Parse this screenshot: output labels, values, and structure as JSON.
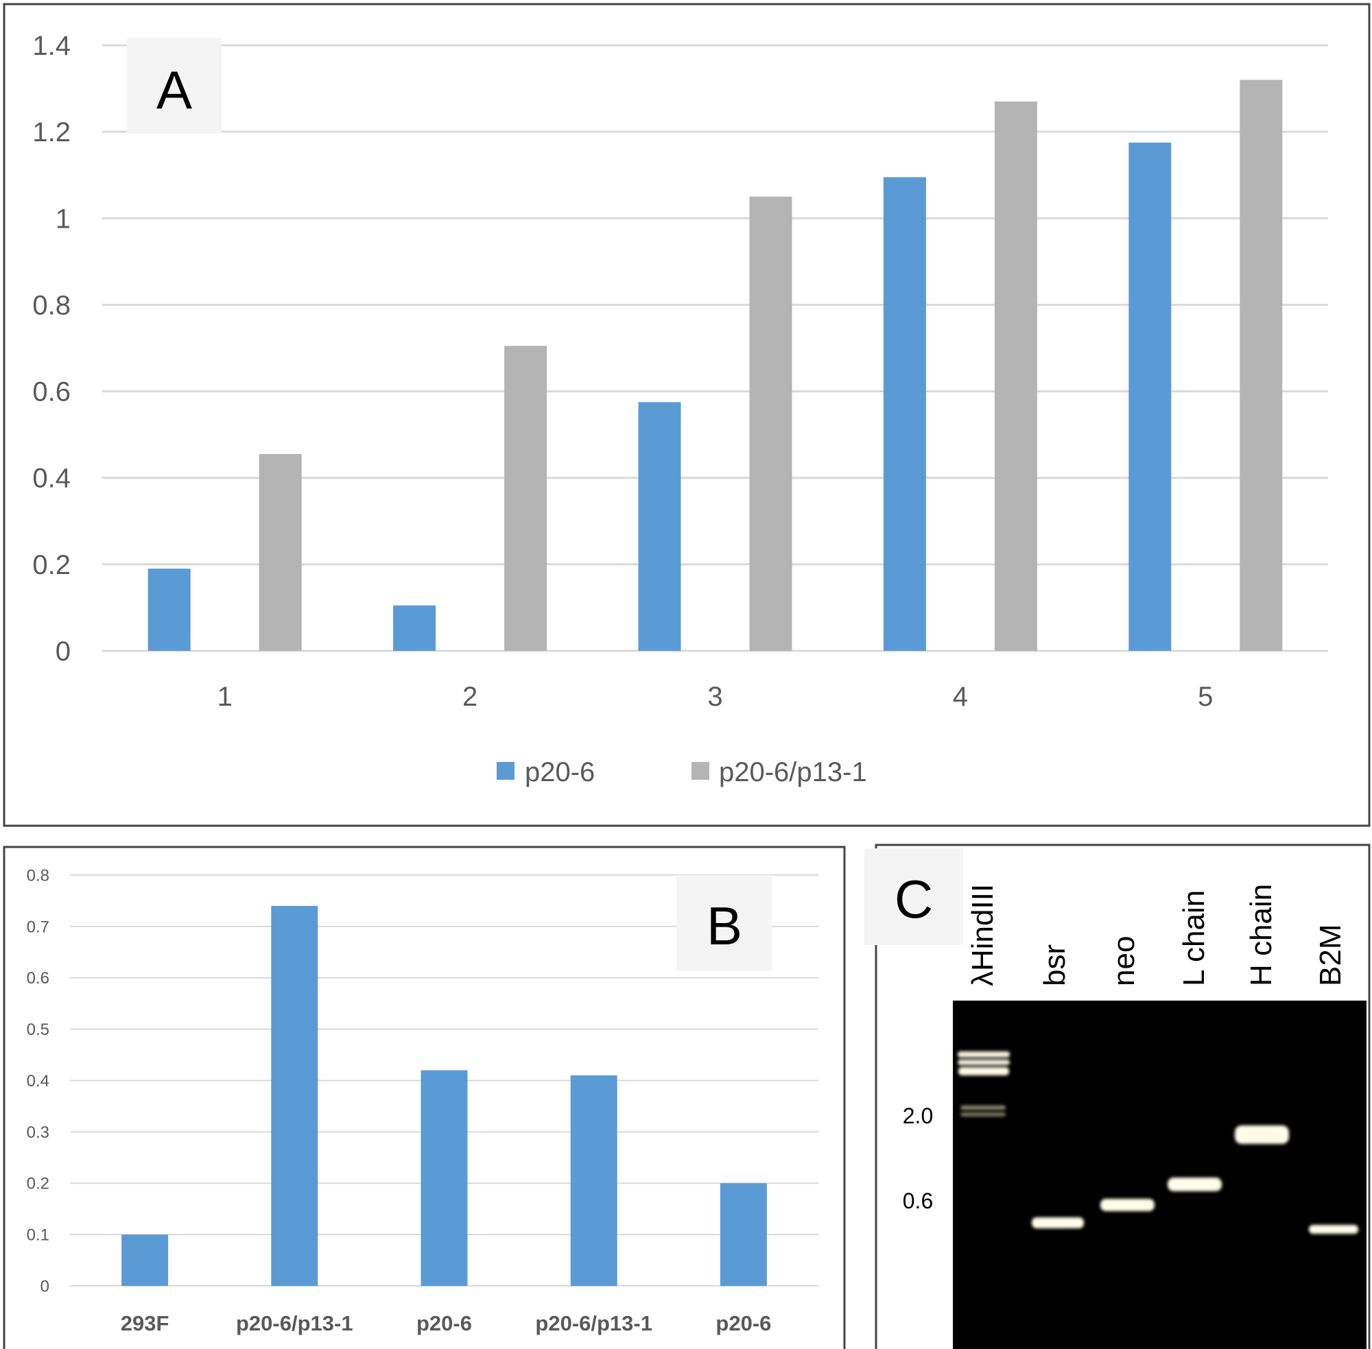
{
  "chart_data": [
    {
      "panel": "A",
      "type": "bar",
      "categories": [
        "1",
        "2",
        "3",
        "4",
        "5"
      ],
      "series": [
        {
          "name": "p20-6",
          "color": "#5b9bd5",
          "values": [
            0.19,
            0.105,
            0.575,
            1.095,
            1.175
          ]
        },
        {
          "name": "p20-6/p13-1",
          "color": "#b4b4b4",
          "values": [
            0.455,
            0.705,
            1.05,
            1.27,
            1.32
          ]
        }
      ],
      "yticks": [
        "0",
        "0.2",
        "0.4",
        "0.6",
        "0.8",
        "1",
        "1.2",
        "1.4"
      ],
      "ylim": [
        0,
        1.4
      ],
      "grid": true,
      "legend": "bottom"
    },
    {
      "panel": "B",
      "type": "bar",
      "categories": [
        "293F",
        "p20-6/p13-1",
        "p20-6",
        "p20-6/p13-1",
        "p20-6"
      ],
      "series": [
        {
          "color": "#5b9bd5",
          "values": [
            0.1,
            0.74,
            0.42,
            0.41,
            0.2
          ]
        }
      ],
      "yticks": [
        "0",
        "0.1",
        "0.2",
        "0.3",
        "0.4",
        "0.5",
        "0.6",
        "0.7",
        "0.8"
      ],
      "ylim": [
        0,
        0.8
      ],
      "grid": true,
      "legend": "none"
    }
  ],
  "gel": {
    "panel": "C",
    "lanes": [
      "λHindIII",
      "bsr",
      "neo",
      "L chain",
      "H chain",
      "B2M"
    ],
    "size_markers": [
      "2.0",
      "0.6"
    ]
  }
}
